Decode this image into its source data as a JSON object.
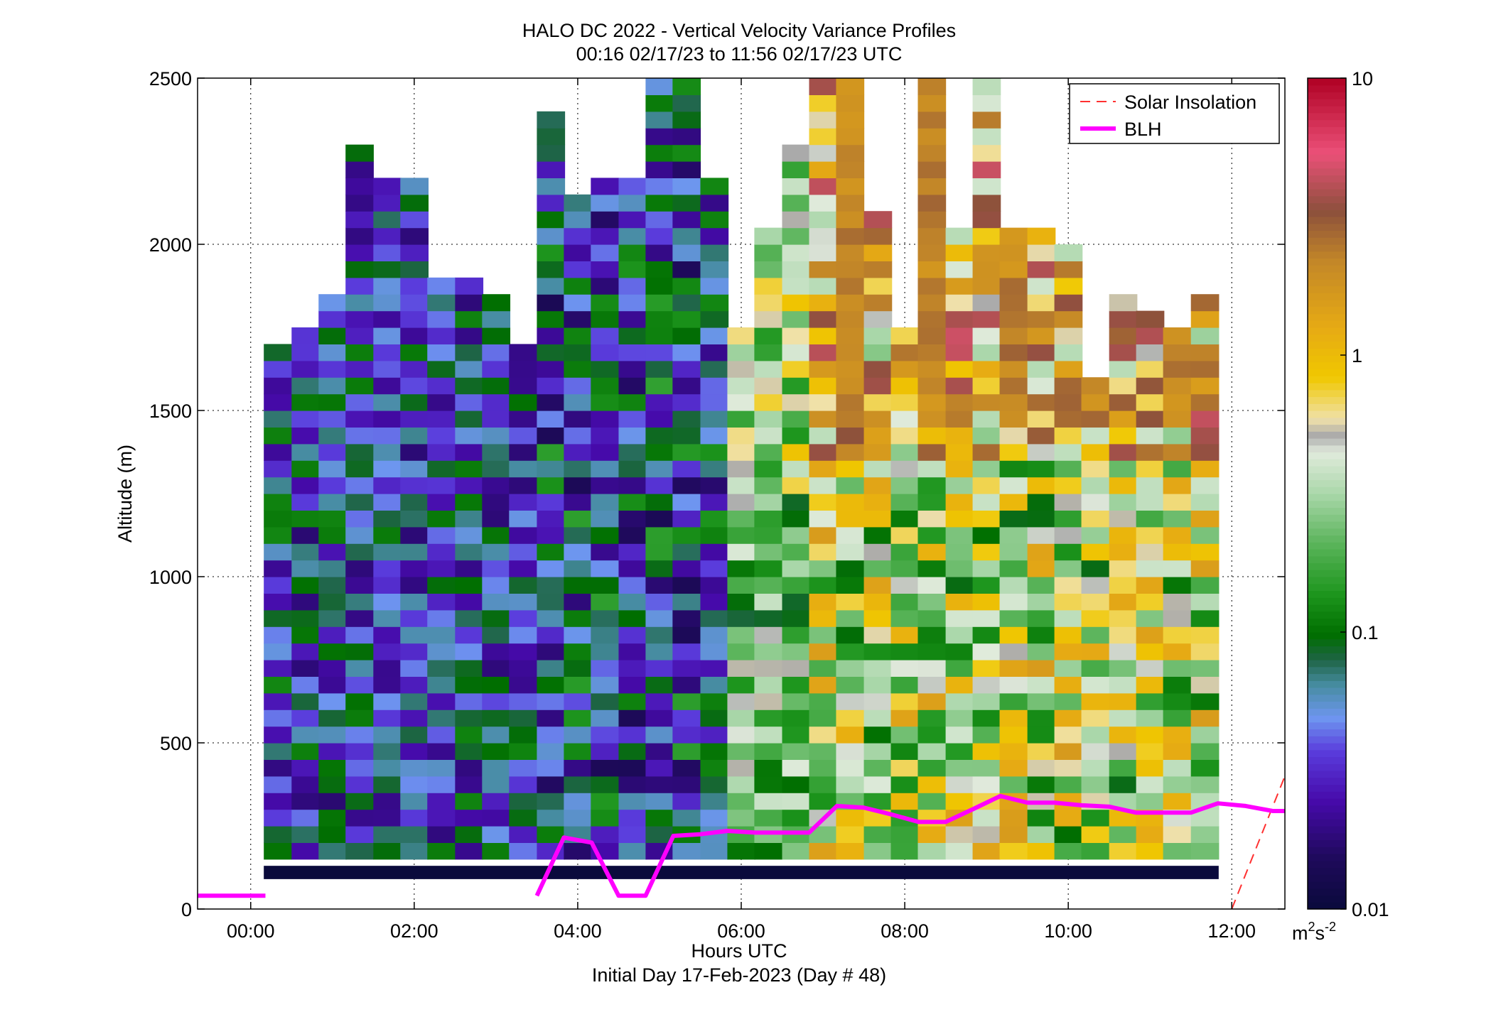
{
  "chart_data": {
    "type": "heatmap",
    "title": "HALO DC 2022 - Vertical Velocity Variance Profiles",
    "subtitle": "00:16 02/17/23 to 11:56 02/17/23  UTC",
    "xlabel": "Hours UTC",
    "xlabel2": "Initial Day 17-Feb-2023 (Day # 48)",
    "ylabel": "Altitude (m)",
    "x_range_hours": [
      -0.65,
      12.65
    ],
    "y_range_m": [
      0,
      2500
    ],
    "x_ticks": [
      {
        "value": 0,
        "label": "00:00"
      },
      {
        "value": 2,
        "label": "02:00"
      },
      {
        "value": 4,
        "label": "04:00"
      },
      {
        "value": 6,
        "label": "06:00"
      },
      {
        "value": 8,
        "label": "08:00"
      },
      {
        "value": 10,
        "label": "10:00"
      },
      {
        "value": 12,
        "label": "12:00"
      }
    ],
    "y_ticks": [
      {
        "value": 0,
        "label": "0"
      },
      {
        "value": 500,
        "label": "500"
      },
      {
        "value": 1000,
        "label": "1000"
      },
      {
        "value": 1500,
        "label": "1500"
      },
      {
        "value": 2000,
        "label": "2000"
      },
      {
        "value": 2500,
        "label": "2500"
      }
    ],
    "grid": true,
    "colorbar": {
      "scale": "log",
      "range": [
        0.01,
        10
      ],
      "ticks": [
        {
          "value": 0.01,
          "label": "0.01"
        },
        {
          "value": 0.1,
          "label": "0.1"
        },
        {
          "value": 1,
          "label": "1"
        },
        {
          "value": 10,
          "label": "10"
        }
      ],
      "unit_base": "m",
      "unit_sup1": "2",
      "unit_mid": "s",
      "unit_sup2": "-2"
    },
    "legend": {
      "position": "top-right",
      "items": [
        {
          "label": "Solar Insolation",
          "color": "#ff3030",
          "style": "dashed"
        },
        {
          "label": "BLH",
          "color": "#ff00ff",
          "style": "solid"
        }
      ]
    },
    "profile_times_hours": [
      0.33,
      0.67,
      1.0,
      1.33,
      1.67,
      2.0,
      2.33,
      2.67,
      3.0,
      3.33,
      3.67,
      4.0,
      4.33,
      4.67,
      5.0,
      5.33,
      5.67,
      6.0,
      6.33,
      6.67,
      7.0,
      7.33,
      7.67,
      8.0,
      8.33,
      8.67,
      9.0,
      9.33,
      9.67,
      10.0,
      10.33,
      10.67,
      11.0,
      11.33,
      11.67
    ],
    "profile_tops_m": [
      1680,
      1720,
      1820,
      2300,
      2200,
      2200,
      1880,
      1880,
      1820,
      1680,
      2400,
      2150,
      2200,
      2200,
      2500,
      2500,
      2200,
      1720,
      2050,
      2280,
      2500,
      2500,
      2100,
      1750,
      2500,
      2050,
      2500,
      2050,
      2050,
      2000,
      1600,
      1820,
      1760,
      1720,
      1820
    ],
    "lowest_gate_band_m": [
      90,
      130
    ],
    "blh_series": {
      "name": "BLH",
      "x_hours": [
        -0.65,
        0.18,
        0.5,
        3.5,
        3.83,
        4.17,
        4.5,
        4.83,
        5.17,
        5.5,
        5.83,
        6.17,
        6.5,
        6.83,
        7.17,
        7.5,
        7.83,
        8.17,
        8.5,
        8.83,
        9.17,
        9.5,
        9.83,
        10.17,
        10.5,
        10.83,
        11.17,
        11.5,
        11.83,
        12.17,
        12.5,
        12.65
      ],
      "y_m": [
        40,
        40,
        null,
        40,
        215,
        200,
        40,
        40,
        220,
        225,
        235,
        230,
        230,
        230,
        310,
        305,
        285,
        262,
        262,
        300,
        340,
        320,
        320,
        312,
        308,
        290,
        290,
        290,
        318,
        310,
        295,
        295
      ]
    },
    "solar_insolation_series": {
      "name": "Solar Insolation",
      "x_hours": [
        12.0,
        12.65
      ],
      "y_m": [
        0,
        400
      ]
    },
    "value_description": "vertical velocity variance, log10 scale, per time/altitude cell"
  }
}
